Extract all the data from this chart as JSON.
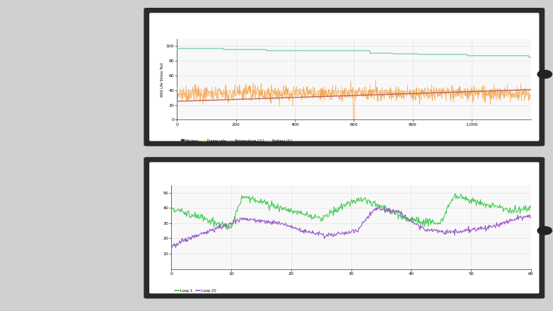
{
  "chart1": {
    "ylabel": "Wild Life Stress Test",
    "xlim": [
      0,
      1200
    ],
    "ylim": [
      0,
      110
    ],
    "yticks": [
      0,
      20,
      40,
      60,
      80,
      100
    ],
    "xticks": [
      0,
      200,
      400,
      600,
      800,
      1000
    ],
    "xtick_labels": [
      "0",
      "200",
      "400",
      "600",
      "800",
      "1,000"
    ],
    "battery_start": 97,
    "battery_end": 85,
    "temp_start": 25,
    "temp_end": 41,
    "framerate_mean": 35,
    "framerate_noise": 5,
    "legend": [
      "Markers",
      "Frame rate",
      "Temperature (°C)",
      "Battery (%)"
    ],
    "legend_colors": [
      "#333333",
      "#f5a040",
      "#c0635a",
      "#7ecec4"
    ],
    "bg_color": "#f8f8f8"
  },
  "chart2": {
    "xlim": [
      0,
      60
    ],
    "ylim": [
      0,
      55
    ],
    "yticks": [
      10,
      20,
      30,
      40,
      50
    ],
    "xticks": [
      0,
      10,
      20,
      30,
      40,
      50,
      60
    ],
    "legend": [
      "Loop 1",
      "Loop 20"
    ],
    "legend_colors": [
      "#44cc55",
      "#9955cc"
    ],
    "bg_color": "#f8f8f8"
  },
  "bg_color": "#d0d0d0",
  "phone_bezel_color": "#2a2a2a",
  "phone_screen_color": "#ffffff",
  "phone_dot_color": "#222222"
}
